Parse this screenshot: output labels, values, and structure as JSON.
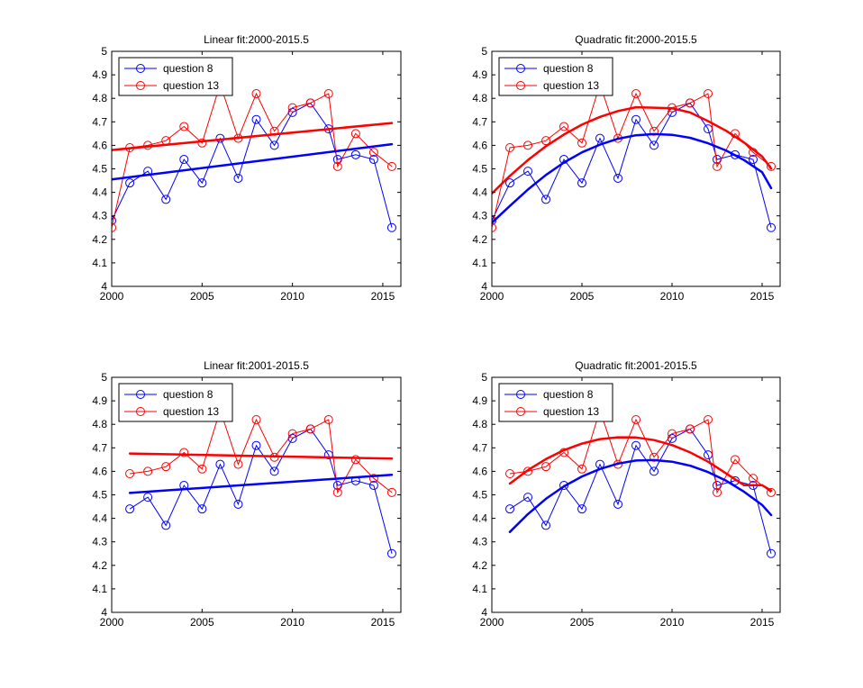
{
  "chart_data": [
    {
      "type": "line",
      "title": "Linear fit:2000-2015.5",
      "xlim": [
        2000,
        2016
      ],
      "ylim": [
        4,
        5
      ],
      "xticks": [
        "2000",
        "2005",
        "2010",
        "2015"
      ],
      "yticks": [
        "4",
        "4.1",
        "4.2",
        "4.3",
        "4.4",
        "4.5",
        "4.6",
        "4.7",
        "4.8",
        "4.9",
        "5"
      ],
      "legend_position": "top-left",
      "series": [
        {
          "name": "question 8",
          "color": "#0000ff",
          "x": [
            2000,
            2001,
            2002,
            2003,
            2004,
            2005,
            2006,
            2007,
            2008,
            2009,
            2010,
            2011,
            2012,
            2012.5,
            2013.5,
            2014.5,
            2015.5
          ],
          "values": [
            4.28,
            4.44,
            4.49,
            4.37,
            4.54,
            4.44,
            4.63,
            4.46,
            4.71,
            4.6,
            4.74,
            4.78,
            4.67,
            4.54,
            4.56,
            4.54,
            4.25
          ],
          "fit": {
            "x": [
              2000,
              2015.5
            ],
            "values": [
              4.455,
              4.605
            ]
          }
        },
        {
          "name": "question 13",
          "color": "#ff0000",
          "x": [
            2000,
            2001,
            2002,
            2003,
            2004,
            2005,
            2006,
            2007,
            2008,
            2009,
            2010,
            2011,
            2012,
            2012.5,
            2013.5,
            2014.5,
            2015.5
          ],
          "values": [
            4.25,
            4.59,
            4.6,
            4.62,
            4.68,
            4.61,
            4.86,
            4.63,
            4.82,
            4.66,
            4.76,
            4.78,
            4.82,
            4.51,
            4.65,
            4.57,
            4.51
          ],
          "fit": {
            "x": [
              2000,
              2015.5
            ],
            "values": [
              4.58,
              4.695
            ]
          }
        }
      ]
    },
    {
      "type": "line",
      "title": "Quadratic fit:2000-2015.5",
      "xlim": [
        2000,
        2016
      ],
      "ylim": [
        4,
        5
      ],
      "xticks": [
        "2000",
        "2005",
        "2010",
        "2015"
      ],
      "yticks": [
        "4",
        "4.1",
        "4.2",
        "4.3",
        "4.4",
        "4.5",
        "4.6",
        "4.7",
        "4.8",
        "4.9",
        "5"
      ],
      "legend_position": "top-left",
      "series": [
        {
          "name": "question 8",
          "color": "#0000ff",
          "x": [
            2000,
            2001,
            2002,
            2003,
            2004,
            2005,
            2006,
            2007,
            2008,
            2009,
            2010,
            2011,
            2012,
            2012.5,
            2013.5,
            2014.5,
            2015.5
          ],
          "values": [
            4.28,
            4.44,
            4.49,
            4.37,
            4.54,
            4.44,
            4.63,
            4.46,
            4.71,
            4.6,
            4.74,
            4.78,
            4.67,
            4.54,
            4.56,
            4.54,
            4.25
          ],
          "fit": {
            "x": [
              2000,
              2001,
              2002,
              2003,
              2004,
              2005,
              2006,
              2007,
              2008,
              2009,
              2010,
              2011,
              2012,
              2013,
              2014,
              2015,
              2015.5
            ],
            "values": [
              4.271,
              4.342,
              4.412,
              4.474,
              4.527,
              4.57,
              4.603,
              4.628,
              4.643,
              4.648,
              4.645,
              4.632,
              4.609,
              4.578,
              4.537,
              4.486,
              4.418
            ]
          }
        },
        {
          "name": "question 13",
          "color": "#ff0000",
          "x": [
            2000,
            2001,
            2002,
            2003,
            2004,
            2005,
            2006,
            2007,
            2008,
            2009,
            2010,
            2011,
            2012,
            2012.5,
            2013.5,
            2014.5,
            2015.5
          ],
          "values": [
            4.25,
            4.59,
            4.6,
            4.62,
            4.68,
            4.61,
            4.86,
            4.63,
            4.82,
            4.66,
            4.76,
            4.78,
            4.82,
            4.51,
            4.65,
            4.57,
            4.51
          ],
          "fit": {
            "x": [
              2000,
              2001,
              2002,
              2003,
              2004,
              2005,
              2006,
              2007,
              2008,
              2009,
              2010,
              2011,
              2012,
              2013,
              2014,
              2015,
              2015.5
            ],
            "values": [
              4.395,
              4.47,
              4.537,
              4.596,
              4.646,
              4.688,
              4.721,
              4.746,
              4.762,
              4.76,
              4.758,
              4.74,
              4.703,
              4.662,
              4.612,
              4.553,
              4.501
            ]
          }
        }
      ]
    },
    {
      "type": "line",
      "title": "Linear fit:2001-2015.5",
      "xlim": [
        2000,
        2016
      ],
      "ylim": [
        4,
        5
      ],
      "xticks": [
        "2000",
        "2005",
        "2010",
        "2015"
      ],
      "yticks": [
        "4",
        "4.1",
        "4.2",
        "4.3",
        "4.4",
        "4.5",
        "4.6",
        "4.7",
        "4.8",
        "4.9",
        "5"
      ],
      "legend_position": "top-left",
      "series": [
        {
          "name": "question 8",
          "color": "#0000ff",
          "x": [
            2001,
            2002,
            2003,
            2004,
            2005,
            2006,
            2007,
            2008,
            2009,
            2010,
            2011,
            2012,
            2012.5,
            2013.5,
            2014.5,
            2015.5
          ],
          "values": [
            4.44,
            4.49,
            4.37,
            4.54,
            4.44,
            4.63,
            4.46,
            4.71,
            4.6,
            4.74,
            4.78,
            4.67,
            4.54,
            4.56,
            4.54,
            4.25
          ],
          "fit": {
            "x": [
              2001,
              2015.5
            ],
            "values": [
              4.508,
              4.585
            ]
          }
        },
        {
          "name": "question 13",
          "color": "#ff0000",
          "x": [
            2001,
            2002,
            2003,
            2004,
            2005,
            2006,
            2007,
            2008,
            2009,
            2010,
            2011,
            2012,
            2012.5,
            2013.5,
            2014.5,
            2015.5
          ],
          "values": [
            4.59,
            4.6,
            4.62,
            4.68,
            4.61,
            4.86,
            4.63,
            4.82,
            4.66,
            4.76,
            4.78,
            4.82,
            4.51,
            4.65,
            4.57,
            4.51
          ],
          "fit": {
            "x": [
              2001,
              2015.5
            ],
            "values": [
              4.676,
              4.654
            ]
          }
        }
      ]
    },
    {
      "type": "line",
      "title": "Quadratic fit:2001-2015.5",
      "xlim": [
        2000,
        2016
      ],
      "ylim": [
        4,
        5
      ],
      "xticks": [
        "2000",
        "2005",
        "2010",
        "2015"
      ],
      "yticks": [
        "4",
        "4.1",
        "4.2",
        "4.3",
        "4.4",
        "4.5",
        "4.6",
        "4.7",
        "4.8",
        "4.9",
        "5"
      ],
      "legend_position": "top-left",
      "series": [
        {
          "name": "question 8",
          "color": "#0000ff",
          "x": [
            2001,
            2002,
            2003,
            2004,
            2005,
            2006,
            2007,
            2008,
            2009,
            2010,
            2011,
            2012,
            2012.5,
            2013.5,
            2014.5,
            2015.5
          ],
          "values": [
            4.44,
            4.49,
            4.37,
            4.54,
            4.44,
            4.63,
            4.46,
            4.71,
            4.6,
            4.74,
            4.78,
            4.67,
            4.54,
            4.56,
            4.54,
            4.25
          ],
          "fit": {
            "x": [
              2001,
              2002,
              2003,
              2004,
              2005,
              2006,
              2007,
              2008,
              2009,
              2010,
              2011,
              2012,
              2013,
              2014,
              2015,
              2015.5
            ],
            "values": [
              4.342,
              4.418,
              4.483,
              4.536,
              4.578,
              4.61,
              4.633,
              4.646,
              4.648,
              4.641,
              4.624,
              4.597,
              4.56,
              4.513,
              4.457,
              4.414
            ]
          }
        },
        {
          "name": "question 13",
          "color": "#ff0000",
          "x": [
            2001,
            2002,
            2003,
            2004,
            2005,
            2006,
            2007,
            2008,
            2009,
            2010,
            2011,
            2012,
            2012.5,
            2013.5,
            2014.5,
            2015.5
          ],
          "values": [
            4.59,
            4.6,
            4.62,
            4.68,
            4.61,
            4.86,
            4.63,
            4.82,
            4.66,
            4.76,
            4.78,
            4.82,
            4.51,
            4.65,
            4.57,
            4.51
          ],
          "fit": {
            "x": [
              2001,
              2002,
              2003,
              2004,
              2005,
              2006,
              2007,
              2008,
              2009,
              2010,
              2011,
              2012,
              2013,
              2014,
              2015,
              2015.5
            ],
            "values": [
              4.548,
              4.605,
              4.652,
              4.69,
              4.718,
              4.737,
              4.745,
              4.744,
              4.733,
              4.712,
              4.681,
              4.641,
              4.591,
              4.541,
              4.541,
              4.518
            ]
          }
        }
      ]
    }
  ]
}
